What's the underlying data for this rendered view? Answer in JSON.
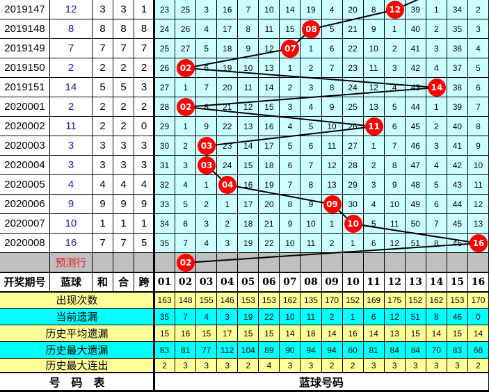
{
  "colors": {
    "grid": "#ccffff",
    "ball": "#ff0000",
    "yellow": "#ffff99",
    "cyan": "#00ffff",
    "prediction": "#c0c0c0",
    "blue_text": "#1a1aa8"
  },
  "rows": [
    {
      "period": "2019147",
      "blue": "12",
      "sum": "3",
      "he": "3",
      "span": "1",
      "cells": [
        "23",
        "25",
        "3",
        "16",
        "7",
        "10",
        "14",
        "19",
        "4",
        "20",
        "8",
        "12",
        "39",
        "1",
        "34",
        "2"
      ],
      "hit": 12
    },
    {
      "period": "2019148",
      "blue": "8",
      "sum": "8",
      "he": "8",
      "span": "8",
      "cells": [
        "24",
        "26",
        "4",
        "17",
        "8",
        "11",
        "15",
        "08",
        "5",
        "21",
        "9",
        "1",
        "40",
        "2",
        "35",
        "3"
      ],
      "hit": 8
    },
    {
      "period": "2019149",
      "blue": "7",
      "sum": "7",
      "he": "7",
      "span": "7",
      "cells": [
        "25",
        "27",
        "5",
        "18",
        "9",
        "12",
        "07",
        "1",
        "6",
        "22",
        "10",
        "2",
        "41",
        "3",
        "36",
        "4"
      ],
      "hit": 7
    },
    {
      "period": "2019150",
      "blue": "2",
      "sum": "2",
      "he": "2",
      "span": "2",
      "cells": [
        "26",
        "02",
        "6",
        "19",
        "10",
        "13",
        "1",
        "2",
        "7",
        "23",
        "11",
        "3",
        "42",
        "4",
        "37",
        "5"
      ],
      "hit": 2
    },
    {
      "period": "2019151",
      "blue": "14",
      "sum": "5",
      "he": "5",
      "span": "3",
      "cells": [
        "27",
        "1",
        "7",
        "20",
        "11",
        "14",
        "2",
        "3",
        "8",
        "24",
        "12",
        "4",
        "43",
        "14",
        "38",
        "6"
      ],
      "hit": 14
    },
    {
      "period": "2020001",
      "blue": "2",
      "sum": "2",
      "he": "2",
      "span": "2",
      "cells": [
        "28",
        "02",
        "8",
        "21",
        "12",
        "15",
        "3",
        "4",
        "9",
        "25",
        "13",
        "5",
        "44",
        "1",
        "39",
        "7"
      ],
      "hit": 2
    },
    {
      "period": "2020002",
      "blue": "11",
      "sum": "2",
      "he": "2",
      "span": "0",
      "cells": [
        "29",
        "1",
        "9",
        "22",
        "13",
        "16",
        "4",
        "5",
        "10",
        "26",
        "11",
        "6",
        "45",
        "2",
        "40",
        "8"
      ],
      "hit": 11
    },
    {
      "period": "2020003",
      "blue": "3",
      "sum": "3",
      "he": "3",
      "span": "3",
      "cells": [
        "30",
        "2",
        "03",
        "23",
        "14",
        "17",
        "5",
        "6",
        "11",
        "27",
        "1",
        "7",
        "46",
        "3",
        "41",
        "9"
      ],
      "hit": 3
    },
    {
      "period": "2020004",
      "blue": "3",
      "sum": "3",
      "he": "3",
      "span": "3",
      "cells": [
        "31",
        "3",
        "03",
        "24",
        "15",
        "18",
        "6",
        "7",
        "12",
        "28",
        "2",
        "8",
        "47",
        "4",
        "42",
        "10"
      ],
      "hit": 3
    },
    {
      "period": "2020005",
      "blue": "4",
      "sum": "4",
      "he": "4",
      "span": "4",
      "cells": [
        "32",
        "4",
        "1",
        "04",
        "16",
        "19",
        "7",
        "8",
        "13",
        "29",
        "3",
        "9",
        "48",
        "5",
        "43",
        "11"
      ],
      "hit": 4
    },
    {
      "period": "2020006",
      "blue": "9",
      "sum": "9",
      "he": "9",
      "span": "9",
      "cells": [
        "33",
        "5",
        "2",
        "1",
        "17",
        "20",
        "8",
        "9",
        "09",
        "30",
        "4",
        "10",
        "49",
        "6",
        "44",
        "12"
      ],
      "hit": 9
    },
    {
      "period": "2020007",
      "blue": "10",
      "sum": "1",
      "he": "1",
      "span": "1",
      "cells": [
        "34",
        "6",
        "3",
        "2",
        "18",
        "21",
        "9",
        "10",
        "1",
        "10",
        "5",
        "11",
        "50",
        "7",
        "45",
        "13"
      ],
      "hit": 10
    },
    {
      "period": "2020008",
      "blue": "16",
      "sum": "7",
      "he": "7",
      "span": "5",
      "cells": [
        "35",
        "7",
        "4",
        "3",
        "19",
        "22",
        "10",
        "11",
        "2",
        "1",
        "6",
        "12",
        "51",
        "8",
        "46",
        "16"
      ],
      "hit": 16
    }
  ],
  "prediction": {
    "label": "预测行",
    "ball": "02",
    "hit": 2
  },
  "header": {
    "period": "开奖期号",
    "blue": "蓝球",
    "sum": "和",
    "he": "合",
    "span": "跨",
    "numbers": [
      "01",
      "02",
      "03",
      "04",
      "05",
      "06",
      "07",
      "08",
      "09",
      "10",
      "11",
      "12",
      "13",
      "14",
      "15",
      "16"
    ]
  },
  "stats": [
    {
      "label": "出现次数",
      "style": "yellow",
      "values": [
        "163",
        "148",
        "155",
        "146",
        "153",
        "153",
        "162",
        "135",
        "170",
        "152",
        "169",
        "175",
        "152",
        "162",
        "153",
        "170"
      ]
    },
    {
      "label": "当前遗漏",
      "style": "cyan",
      "values": [
        "35",
        "7",
        "4",
        "3",
        "19",
        "22",
        "10",
        "11",
        "2",
        "1",
        "6",
        "12",
        "51",
        "8",
        "46",
        "0"
      ]
    },
    {
      "label": "历史平均遗漏",
      "style": "yellow",
      "values": [
        "15",
        "16",
        "15",
        "17",
        "15",
        "15",
        "14",
        "18",
        "14",
        "16",
        "14",
        "13",
        "15",
        "14",
        "15",
        "14"
      ]
    },
    {
      "label": "历史最大遗漏",
      "style": "cyan",
      "values": [
        "83",
        "81",
        "77",
        "112",
        "104",
        "89",
        "90",
        "94",
        "94",
        "60",
        "81",
        "84",
        "84",
        "70",
        "83",
        "68"
      ]
    },
    {
      "label": "历史最大连出",
      "style": "yellow",
      "values": [
        "2",
        "3",
        "3",
        "3",
        "2",
        "4",
        "3",
        "3",
        "2",
        "2",
        "3",
        "3",
        "3",
        "3",
        "3",
        "2"
      ]
    }
  ],
  "footer": {
    "left": "号　码　表",
    "right": "蓝球号码"
  }
}
